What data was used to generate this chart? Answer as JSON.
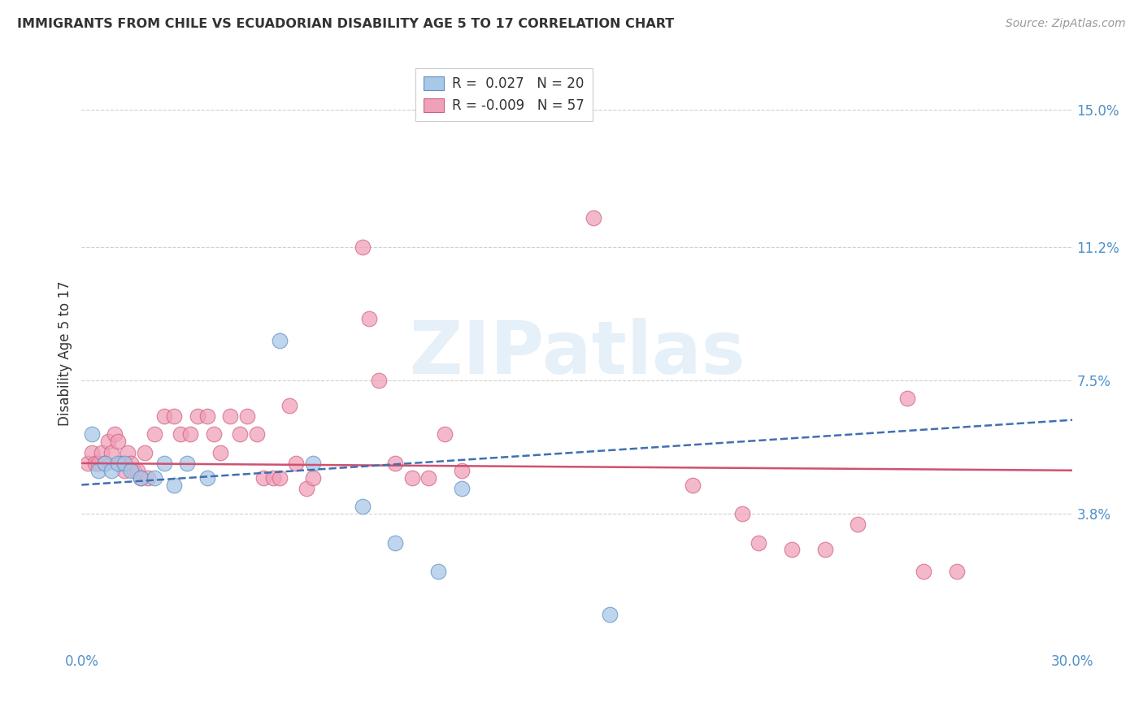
{
  "title": "IMMIGRANTS FROM CHILE VS ECUADORIAN DISABILITY AGE 5 TO 17 CORRELATION CHART",
  "source": "Source: ZipAtlas.com",
  "ylabel": "Disability Age 5 to 17",
  "xlim": [
    0.0,
    0.3
  ],
  "ylim": [
    0.0,
    0.165
  ],
  "xtick_positions": [
    0.0,
    0.05,
    0.1,
    0.15,
    0.2,
    0.25,
    0.3
  ],
  "xtick_labels": [
    "0.0%",
    "",
    "",
    "",
    "",
    "",
    "30.0%"
  ],
  "ytick_vals": [
    0.038,
    0.075,
    0.112,
    0.15
  ],
  "ytick_labels": [
    "3.8%",
    "7.5%",
    "11.2%",
    "15.0%"
  ],
  "legend_blue": "R =  0.027   N = 20",
  "legend_pink": "R = -0.009   N = 57",
  "blue_fill": "#a8c8e8",
  "blue_edge": "#6090c0",
  "pink_fill": "#f0a0b8",
  "pink_edge": "#d06080",
  "blue_trend_color": "#4070b0",
  "pink_trend_color": "#d05070",
  "watermark": "ZIPatlas",
  "background_color": "#ffffff",
  "grid_color": "#d0d0d0",
  "blue_scatter": [
    [
      0.003,
      0.06
    ],
    [
      0.005,
      0.05
    ],
    [
      0.007,
      0.052
    ],
    [
      0.009,
      0.05
    ],
    [
      0.011,
      0.052
    ],
    [
      0.013,
      0.052
    ],
    [
      0.015,
      0.05
    ],
    [
      0.018,
      0.048
    ],
    [
      0.022,
      0.048
    ],
    [
      0.025,
      0.052
    ],
    [
      0.028,
      0.046
    ],
    [
      0.032,
      0.052
    ],
    [
      0.038,
      0.048
    ],
    [
      0.06,
      0.086
    ],
    [
      0.07,
      0.052
    ],
    [
      0.085,
      0.04
    ],
    [
      0.095,
      0.03
    ],
    [
      0.108,
      0.022
    ],
    [
      0.115,
      0.045
    ],
    [
      0.16,
      0.01
    ]
  ],
  "pink_scatter": [
    [
      0.002,
      0.052
    ],
    [
      0.003,
      0.055
    ],
    [
      0.004,
      0.052
    ],
    [
      0.005,
      0.052
    ],
    [
      0.006,
      0.055
    ],
    [
      0.007,
      0.052
    ],
    [
      0.008,
      0.058
    ],
    [
      0.009,
      0.055
    ],
    [
      0.01,
      0.06
    ],
    [
      0.011,
      0.058
    ],
    [
      0.012,
      0.052
    ],
    [
      0.013,
      0.05
    ],
    [
      0.014,
      0.055
    ],
    [
      0.015,
      0.052
    ],
    [
      0.016,
      0.05
    ],
    [
      0.017,
      0.05
    ],
    [
      0.018,
      0.048
    ],
    [
      0.019,
      0.055
    ],
    [
      0.02,
      0.048
    ],
    [
      0.022,
      0.06
    ],
    [
      0.025,
      0.065
    ],
    [
      0.028,
      0.065
    ],
    [
      0.03,
      0.06
    ],
    [
      0.033,
      0.06
    ],
    [
      0.035,
      0.065
    ],
    [
      0.038,
      0.065
    ],
    [
      0.04,
      0.06
    ],
    [
      0.042,
      0.055
    ],
    [
      0.045,
      0.065
    ],
    [
      0.048,
      0.06
    ],
    [
      0.05,
      0.065
    ],
    [
      0.053,
      0.06
    ],
    [
      0.055,
      0.048
    ],
    [
      0.058,
      0.048
    ],
    [
      0.06,
      0.048
    ],
    [
      0.063,
      0.068
    ],
    [
      0.065,
      0.052
    ],
    [
      0.068,
      0.045
    ],
    [
      0.07,
      0.048
    ],
    [
      0.085,
      0.112
    ],
    [
      0.087,
      0.092
    ],
    [
      0.09,
      0.075
    ],
    [
      0.095,
      0.052
    ],
    [
      0.1,
      0.048
    ],
    [
      0.105,
      0.048
    ],
    [
      0.11,
      0.06
    ],
    [
      0.115,
      0.05
    ],
    [
      0.155,
      0.12
    ],
    [
      0.185,
      0.046
    ],
    [
      0.2,
      0.038
    ],
    [
      0.205,
      0.03
    ],
    [
      0.215,
      0.028
    ],
    [
      0.225,
      0.028
    ],
    [
      0.235,
      0.035
    ],
    [
      0.25,
      0.07
    ],
    [
      0.255,
      0.022
    ],
    [
      0.265,
      0.022
    ]
  ],
  "blue_trend_x": [
    0.0,
    0.3
  ],
  "blue_trend_y_start": 0.046,
  "blue_trend_y_end": 0.064,
  "pink_trend_x": [
    0.0,
    0.3
  ],
  "pink_trend_y_start": 0.052,
  "pink_trend_y_end": 0.05
}
